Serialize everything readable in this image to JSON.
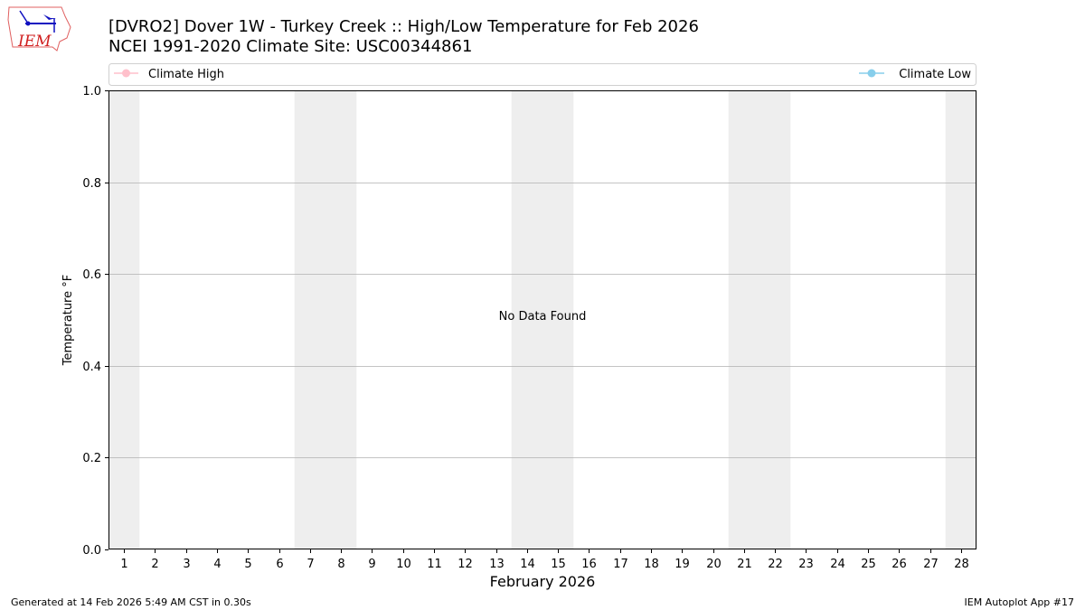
{
  "header": {
    "title_line1": "[DVRO2] Dover 1W - Turkey Creek :: High/Low Temperature for Feb 2026",
    "title_line2": "NCEI 1991-2020 Climate Site: USC00344861",
    "logo_text": "IEM"
  },
  "footer": {
    "generated": "Generated at 14 Feb 2026 5:49 AM CST in 0.30s",
    "app": "IEM Autoplot App #17"
  },
  "chart_data": {
    "type": "line",
    "title": "[DVRO2] Dover 1W - Turkey Creek :: High/Low Temperature for Feb 2026",
    "subtitle": "NCEI 1991-2020 Climate Site: USC00344861",
    "xlabel": "February 2026",
    "ylabel": "Temperature °F",
    "xlim": [
      0.5,
      28.5
    ],
    "ylim": [
      0.0,
      1.0
    ],
    "x_ticks": [
      "1",
      "2",
      "3",
      "4",
      "5",
      "6",
      "7",
      "8",
      "9",
      "10",
      "11",
      "12",
      "13",
      "14",
      "15",
      "16",
      "17",
      "18",
      "19",
      "20",
      "21",
      "22",
      "23",
      "24",
      "25",
      "26",
      "27",
      "28"
    ],
    "y_ticks": [
      "0.0",
      "0.2",
      "0.4",
      "0.6",
      "0.8",
      "1.0"
    ],
    "y_tick_values": [
      0,
      0.2,
      0.4,
      0.6,
      0.8,
      1.0
    ],
    "grid": "horizontal",
    "shaded_days": [
      1,
      7,
      8,
      14,
      15,
      21,
      22,
      28
    ],
    "shade_color": "#eeeeee",
    "annotation": "No Data Found",
    "legend_placement": "top",
    "series": [
      {
        "name": "Climate High",
        "color": "#ffc0cb",
        "values": []
      },
      {
        "name": "Climate Low",
        "color": "#87ceeb",
        "values": []
      }
    ]
  }
}
